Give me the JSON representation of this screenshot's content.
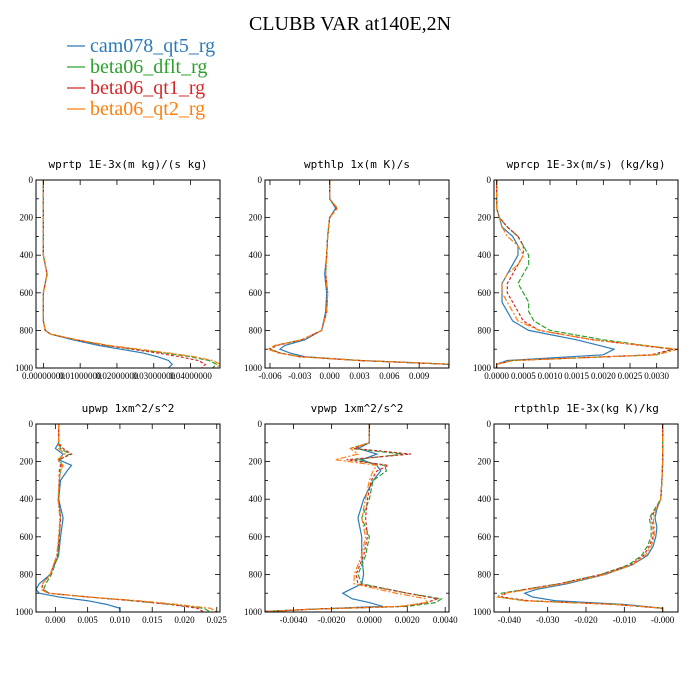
{
  "title": "CLUBB VAR at140E,2N",
  "series": [
    {
      "name": "cam078_qt5_rg",
      "color": "#2b7bb9",
      "dash": ""
    },
    {
      "name": "beta06_dflt_rg",
      "color": "#2ca02c",
      "dash": "5,2"
    },
    {
      "name": "beta06_qt1_rg",
      "color": "#d62728",
      "dash": "3,2"
    },
    {
      "name": "beta06_qt2_rg",
      "color": "#ff7f0e",
      "dash": "6,2,2,2"
    }
  ],
  "chart_data": [
    {
      "type": "line",
      "title": "wprtp  1E-3x(m kg)/(s kg)",
      "xlim": [
        -0.002,
        0.048
      ],
      "ylim": [
        1000,
        0
      ],
      "xticks": [
        "0.00000000",
        "0.01000000",
        "0.02000000",
        "0.03000000",
        "0.04000000"
      ],
      "xtick_values": [
        0,
        0.01,
        0.02,
        0.03,
        0.04
      ],
      "yticks": [
        0,
        200,
        400,
        600,
        800,
        1000
      ],
      "levels": [
        0,
        100,
        200,
        300,
        400,
        450,
        500,
        550,
        600,
        700,
        750,
        800,
        820,
        850,
        880,
        900,
        920,
        940,
        960,
        980,
        1000
      ],
      "series_values": [
        [
          0,
          0,
          0,
          0,
          0,
          0.0005,
          0.001,
          0.0005,
          0,
          0,
          0,
          0.0005,
          0.002,
          0.008,
          0.015,
          0.021,
          0.027,
          0.031,
          0.034,
          0.035,
          0.034
        ],
        [
          0,
          0,
          0,
          0,
          0,
          0.0005,
          0.001,
          0.0005,
          0,
          0,
          0,
          0.0005,
          0.002,
          0.009,
          0.017,
          0.025,
          0.033,
          0.04,
          0.045,
          0.047,
          0.046
        ],
        [
          0,
          0,
          0,
          0,
          0,
          0.0005,
          0.001,
          0.0005,
          0,
          0,
          0,
          0.0005,
          0.002,
          0.009,
          0.017,
          0.024,
          0.031,
          0.037,
          0.042,
          0.044,
          0.043
        ],
        [
          0,
          0,
          0,
          0,
          0,
          0.0005,
          0.001,
          0.0005,
          0,
          0,
          0,
          0.0005,
          0.002,
          0.009,
          0.018,
          0.026,
          0.034,
          0.041,
          0.046,
          0.048,
          0.047
        ]
      ]
    },
    {
      "type": "line",
      "title": "wpthlp  1x(m K)/s",
      "xlim": [
        -0.0065,
        0.012
      ],
      "ylim": [
        1000,
        0
      ],
      "xticks": [
        "-0.006",
        "-0.003",
        "0.000",
        "0.003",
        "0.006",
        "0.009"
      ],
      "xtick_values": [
        -0.006,
        -0.003,
        0,
        0.003,
        0.006,
        0.009
      ],
      "yticks": [
        0,
        200,
        400,
        600,
        800,
        1000
      ],
      "levels": [
        0,
        100,
        150,
        200,
        300,
        400,
        500,
        600,
        700,
        800,
        850,
        880,
        900,
        920,
        940,
        960,
        980,
        1000
      ],
      "series_values": [
        [
          0,
          0,
          0.0006,
          0,
          -0.0002,
          -0.0003,
          -0.0005,
          -0.0003,
          -0.0004,
          -0.0008,
          -0.0025,
          -0.0045,
          -0.005,
          -0.004,
          -0.0025,
          0.003,
          0.012,
          0.012
        ],
        [
          0,
          0,
          0.0007,
          0,
          -0.0002,
          -0.0003,
          -0.0004,
          -0.0002,
          -0.0003,
          -0.0008,
          -0.0028,
          -0.0055,
          -0.006,
          -0.005,
          -0.003,
          0.003,
          0.012,
          0.012
        ],
        [
          0,
          0,
          0.0007,
          0,
          -0.0002,
          -0.0003,
          -0.0004,
          -0.0002,
          -0.0003,
          -0.0008,
          -0.0028,
          -0.0053,
          -0.006,
          -0.005,
          -0.003,
          0.003,
          0.012,
          0.012
        ],
        [
          0,
          0,
          0.0008,
          0,
          -0.0002,
          -0.0003,
          -0.0004,
          -0.0002,
          -0.0003,
          -0.0008,
          -0.0028,
          -0.0055,
          -0.0062,
          -0.0052,
          -0.003,
          0.003,
          0.012,
          0.012
        ]
      ]
    },
    {
      "type": "line",
      "title": "wprcp  1E-3x(m/s) (kg/kg)",
      "xlim": [
        -5e-05,
        0.0034
      ],
      "ylim": [
        1000,
        0
      ],
      "xticks": [
        "0.0000",
        "0.0005",
        "0.0010",
        "0.0015",
        "0.0020",
        "0.0025",
        "0.0030"
      ],
      "xtick_values": [
        0,
        0.0005,
        0.001,
        0.0015,
        0.002,
        0.0025,
        0.003
      ],
      "yticks": [
        0,
        200,
        400,
        600,
        800,
        1000
      ],
      "levels": [
        0,
        100,
        150,
        200,
        250,
        300,
        350,
        400,
        450,
        500,
        550,
        600,
        650,
        700,
        750,
        800,
        850,
        900,
        930,
        960,
        980,
        1000
      ],
      "series_values": [
        [
          0,
          0,
          0,
          5e-05,
          0.0001,
          0.0003,
          0.0004,
          0.0004,
          0.0003,
          0.0002,
          0.0001,
          0.0001,
          0.0001,
          0.0002,
          0.0003,
          0.0006,
          0.0015,
          0.0022,
          0.002,
          0.0002,
          0,
          0
        ],
        [
          0,
          0,
          0,
          5e-05,
          0.0002,
          0.0004,
          0.0005,
          0.0006,
          0.0006,
          0.0005,
          0.0004,
          0.0005,
          0.0006,
          0.0006,
          0.0007,
          0.001,
          0.002,
          0.0033,
          0.003,
          0.0003,
          0,
          0
        ],
        [
          0,
          0,
          0,
          5e-05,
          0.0002,
          0.0004,
          0.0005,
          0.0005,
          0.0004,
          0.0003,
          0.0002,
          0.0002,
          0.0003,
          0.0004,
          0.0005,
          0.0008,
          0.0018,
          0.0033,
          0.0029,
          0.0003,
          0,
          0
        ],
        [
          0,
          0,
          0,
          5e-05,
          0.0001,
          0.0002,
          0.0004,
          0.0005,
          0.0004,
          0.0002,
          0.0001,
          0.0001,
          0.0002,
          0.0003,
          0.0004,
          0.0008,
          0.0018,
          0.0034,
          0.003,
          0.0003,
          0,
          0
        ]
      ]
    },
    {
      "type": "line",
      "title": "upwp  1xm^2/s^2",
      "xlim": [
        -0.003,
        0.0255
      ],
      "ylim": [
        1000,
        0
      ],
      "xticks": [
        "0.000",
        "0.005",
        "0.010",
        "0.015",
        "0.020",
        "0.025"
      ],
      "xtick_values": [
        0,
        0.005,
        0.01,
        0.015,
        0.02,
        0.025
      ],
      "yticks": [
        0,
        200,
        400,
        600,
        800,
        1000
      ],
      "levels": [
        0,
        100,
        130,
        160,
        190,
        220,
        250,
        300,
        400,
        500,
        600,
        700,
        800,
        850,
        880,
        900,
        920,
        940,
        960,
        980,
        1000
      ],
      "series_values": [
        [
          0.0005,
          0.0005,
          0,
          0.0012,
          0.0005,
          0.0025,
          0.0018,
          0.0008,
          0.0005,
          0.0012,
          0.0008,
          0.0005,
          -0.0008,
          -0.0025,
          -0.003,
          -0.0025,
          0.0005,
          0.005,
          0.008,
          0.01,
          0.01
        ],
        [
          0.0005,
          0.0005,
          0.0008,
          0.0022,
          0.0007,
          0.001,
          0.0008,
          0.0006,
          0.0005,
          0.0008,
          0.0006,
          0.0004,
          -0.0006,
          -0.0015,
          -0.0018,
          -0.001,
          0.005,
          0.012,
          0.018,
          0.023,
          0.024
        ],
        [
          0.0005,
          0.0005,
          0.0012,
          0.0025,
          0.0005,
          0.0008,
          0.0006,
          0.0006,
          0.0005,
          0.0008,
          0.0006,
          0.0003,
          -0.0008,
          -0.002,
          -0.002,
          -0.001,
          0.005,
          0.012,
          0.018,
          0.022,
          0.023
        ],
        [
          0.0005,
          0.0005,
          0.0005,
          0.0015,
          0.0003,
          0.0012,
          0.0008,
          0.0006,
          0.0004,
          0.0007,
          0.0005,
          0.0002,
          -0.0008,
          -0.002,
          -0.0022,
          -0.0012,
          0.005,
          0.013,
          0.019,
          0.024,
          0.025
        ]
      ]
    },
    {
      "type": "line",
      "title": "vpwp  1xm^2/s^2",
      "xlim": [
        -0.0055,
        0.0042
      ],
      "ylim": [
        1000,
        0
      ],
      "xticks": [
        "-0.0040",
        "-0.0020",
        "0.0000",
        "0.0020",
        "0.0040"
      ],
      "xtick_values": [
        -0.004,
        -0.002,
        0,
        0.002,
        0.004
      ],
      "yticks": [
        0,
        200,
        400,
        600,
        800,
        1000
      ],
      "levels": [
        0,
        100,
        130,
        160,
        190,
        220,
        250,
        300,
        400,
        500,
        600,
        700,
        800,
        850,
        900,
        930,
        950,
        970,
        985,
        1000
      ],
      "series_values": [
        [
          0,
          0,
          -0.0006,
          0.0004,
          -0.0004,
          0.0004,
          0.0006,
          0.0002,
          -0.0003,
          -0.0006,
          -0.0004,
          -0.0004,
          -0.0003,
          -0.0004,
          -0.0014,
          -0.0009,
          0,
          0.0007,
          -0.003,
          -0.006
        ],
        [
          0,
          0,
          -0.001,
          0.0018,
          -0.0008,
          0.0008,
          0.0009,
          0.0002,
          0,
          -0.0004,
          0,
          -0.0002,
          -0.0006,
          -0.0004,
          0.002,
          0.0038,
          0.0035,
          0.002,
          -0.003,
          -0.006
        ],
        [
          0,
          0,
          -0.0008,
          0.0022,
          -0.0012,
          0.001,
          0.0004,
          0.0001,
          -0.0001,
          -0.0002,
          -0.0001,
          -0.0003,
          -0.0007,
          -0.0006,
          0.002,
          0.0036,
          0.003,
          0.0018,
          -0.003,
          -0.006
        ],
        [
          0,
          0,
          -0.001,
          -0.0006,
          -0.0018,
          0.0004,
          0.0002,
          0,
          -0.0002,
          -0.0004,
          -0.0002,
          -0.0004,
          -0.0008,
          -0.0008,
          0.0014,
          0.003,
          0.003,
          0.0016,
          -0.003,
          -0.006
        ]
      ]
    },
    {
      "type": "line",
      "title": "rtpthlp  1E-3x(kg K)/kg",
      "xlim": [
        -0.044,
        0.004
      ],
      "ylim": [
        1000,
        0
      ],
      "xticks": [
        "-0.040",
        "-0.030",
        "-0.020",
        "-0.010",
        "-0.000"
      ],
      "xtick_values": [
        -0.04,
        -0.03,
        -0.02,
        -0.01,
        0
      ],
      "yticks": [
        0,
        200,
        400,
        600,
        800,
        1000
      ],
      "levels": [
        0,
        100,
        200,
        300,
        400,
        450,
        500,
        550,
        600,
        650,
        700,
        750,
        800,
        850,
        880,
        900,
        920,
        940,
        960,
        980,
        1000
      ],
      "series_values": [
        [
          0,
          0,
          0,
          -0.0002,
          -0.0005,
          -0.0015,
          -0.002,
          -0.0015,
          -0.0018,
          -0.0025,
          -0.004,
          -0.008,
          -0.015,
          -0.025,
          -0.033,
          -0.036,
          -0.034,
          -0.028,
          -0.01,
          0,
          0
        ],
        [
          0,
          0,
          0,
          -0.0002,
          -0.0005,
          -0.002,
          -0.0035,
          -0.003,
          -0.003,
          -0.004,
          -0.0055,
          -0.009,
          -0.016,
          -0.027,
          -0.036,
          -0.042,
          -0.043,
          -0.036,
          -0.012,
          0,
          0
        ],
        [
          0,
          0,
          0,
          -0.0002,
          -0.0005,
          -0.0018,
          -0.003,
          -0.0025,
          -0.0025,
          -0.0035,
          -0.005,
          -0.0085,
          -0.016,
          -0.027,
          -0.036,
          -0.041,
          -0.042,
          -0.035,
          -0.012,
          0,
          0
        ],
        [
          0,
          0,
          0,
          -0.0002,
          -0.0005,
          -0.0017,
          -0.0025,
          -0.0022,
          -0.0022,
          -0.003,
          -0.0045,
          -0.008,
          -0.015,
          -0.026,
          -0.035,
          -0.041,
          -0.043,
          -0.036,
          -0.012,
          0,
          0
        ]
      ]
    }
  ]
}
